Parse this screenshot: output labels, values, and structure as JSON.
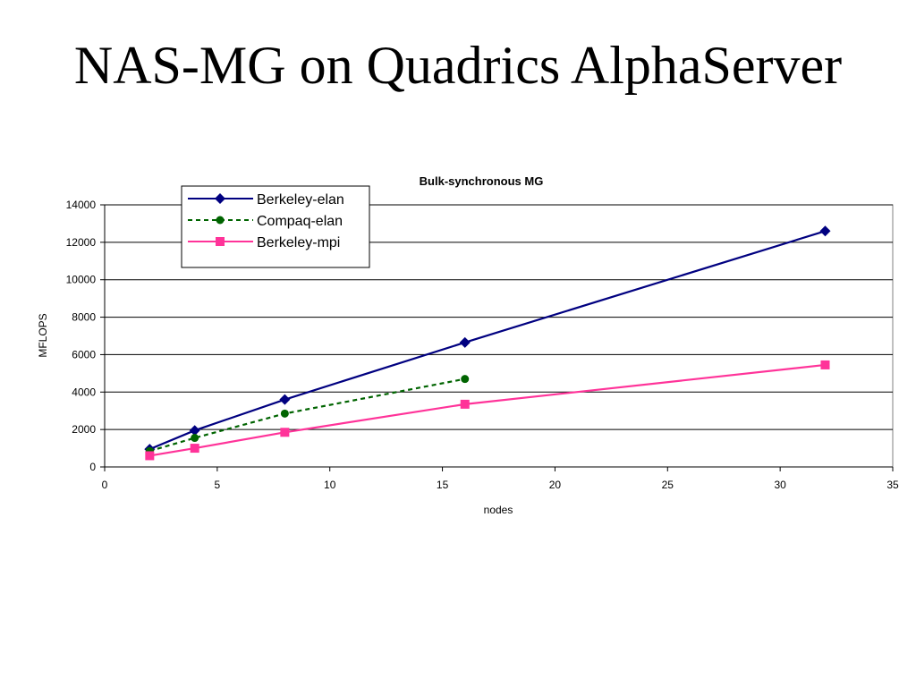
{
  "slide": {
    "title": "NAS-MG on Quadrics AlphaServer"
  },
  "chart_data": {
    "type": "line",
    "title": "Bulk-synchronous MG",
    "xlabel": "nodes",
    "ylabel": "MFLOPS",
    "xlim": [
      0,
      35
    ],
    "ylim": [
      0,
      14000
    ],
    "xticks": [
      0,
      5,
      10,
      15,
      20,
      25,
      30,
      35
    ],
    "yticks": [
      0,
      2000,
      4000,
      6000,
      8000,
      10000,
      12000,
      14000
    ],
    "grid": "horizontal",
    "legend_position": "top-left",
    "series": [
      {
        "name": "Berkeley-elan",
        "color": "#000080",
        "line_style": "solid",
        "marker": "diamond",
        "x": [
          2,
          4,
          8,
          16,
          32
        ],
        "y": [
          950,
          1950,
          3600,
          6650,
          12600
        ]
      },
      {
        "name": "Compaq-elan",
        "color": "#006400",
        "line_style": "dashed",
        "marker": "circle",
        "x": [
          2,
          4,
          8,
          16
        ],
        "y": [
          850,
          1550,
          2850,
          4700
        ]
      },
      {
        "name": "Berkeley-mpi",
        "color": "#ff3399",
        "line_style": "solid",
        "marker": "square",
        "x": [
          2,
          4,
          8,
          16,
          32
        ],
        "y": [
          600,
          1000,
          1850,
          3350,
          5450
        ]
      }
    ]
  }
}
